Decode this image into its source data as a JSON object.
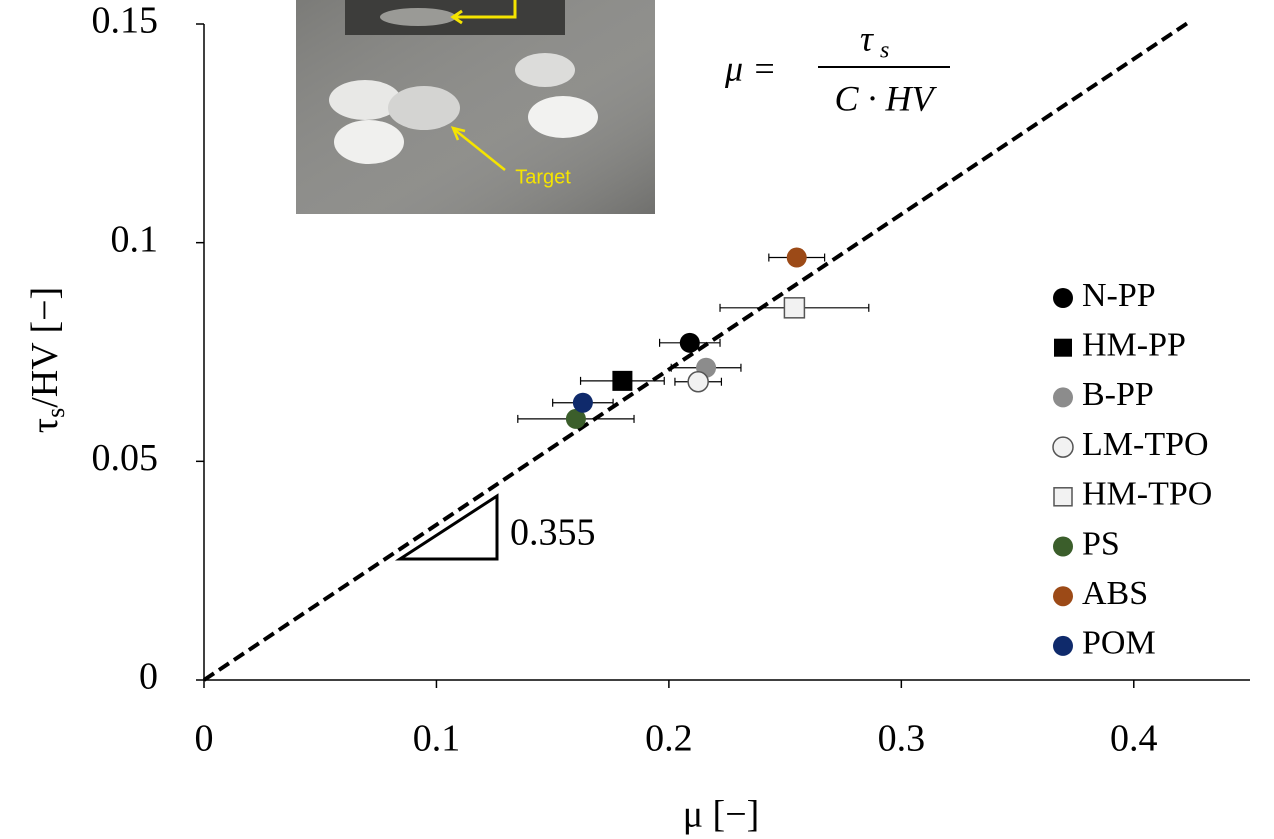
{
  "chart_data": {
    "type": "scatter",
    "xlabel": "μ [−]",
    "ylabel_parts": [
      "τ",
      "s",
      "/HV [−]"
    ],
    "equation_parts": [
      "μ =",
      "τ",
      "s",
      "C · HV"
    ],
    "inset_label": "Target",
    "xlim": [
      0,
      0.45
    ],
    "ylim": [
      0,
      0.15
    ],
    "xticks": [
      0,
      0.1,
      0.2,
      0.3,
      0.4
    ],
    "yticks": [
      0,
      0.05,
      0.1,
      0.15
    ],
    "grid": false,
    "legend": "right",
    "fit": {
      "slope": 0.355,
      "x": [
        0,
        0.424
      ]
    },
    "series": [
      {
        "name": "N-PP",
        "color": "#000000",
        "marker": "circle",
        "x": [
          0.209
        ],
        "y": [
          0.0771
        ],
        "xerr": [
          0.013
        ]
      },
      {
        "name": "HM-PP",
        "color": "#000000",
        "marker": "square",
        "x": [
          0.18
        ],
        "y": [
          0.0684
        ],
        "xerr": [
          0.018
        ]
      },
      {
        "name": "B-PP",
        "color": "#8c8c8c",
        "marker": "circle",
        "x": [
          0.216
        ],
        "y": [
          0.0714
        ],
        "xerr": [
          0.015
        ]
      },
      {
        "name": "LM-TPO",
        "color": "#f2f2f2",
        "marker": "circle",
        "x": [
          0.2126
        ],
        "y": [
          0.0682
        ],
        "xerr": [
          0.01
        ]
      },
      {
        "name": "HM-TPO",
        "color": "#f2f2f2",
        "marker": "square",
        "x": [
          0.254
        ],
        "y": [
          0.0851
        ],
        "xerr": [
          0.032
        ]
      },
      {
        "name": "PS",
        "color": "#3b5e2b",
        "marker": "circle",
        "x": [
          0.16
        ],
        "y": [
          0.0597
        ],
        "xerr": [
          0.025
        ]
      },
      {
        "name": "ABS",
        "color": "#9c4a17",
        "marker": "circle",
        "x": [
          0.255
        ],
        "y": [
          0.0966
        ],
        "xerr": [
          0.012
        ]
      },
      {
        "name": "POM",
        "color": "#0f2a6b",
        "marker": "circle",
        "x": [
          0.163
        ],
        "y": [
          0.0634
        ],
        "xerr": [
          0.013
        ]
      }
    ]
  }
}
